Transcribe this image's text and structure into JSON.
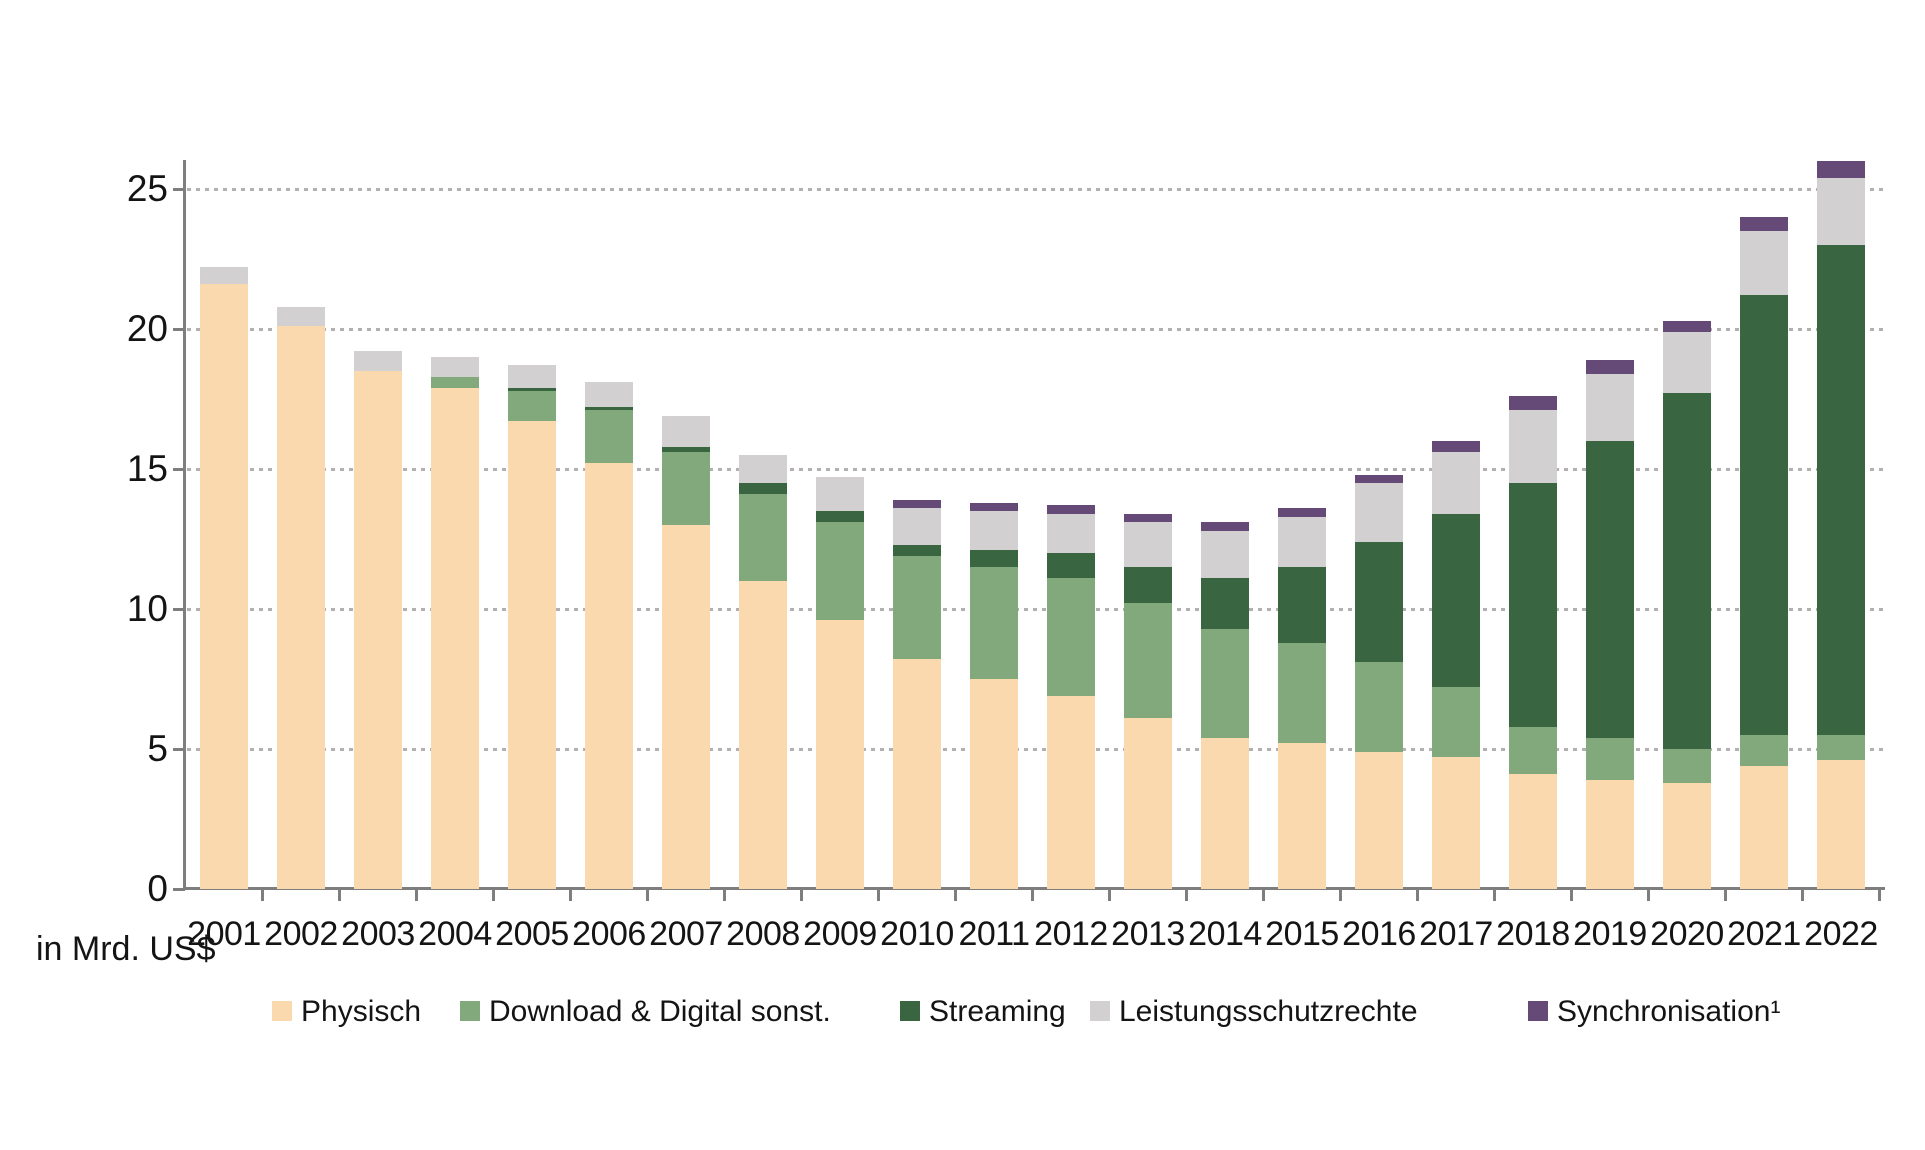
{
  "unit_label": "in Mrd. US$",
  "chart_data": {
    "type": "bar",
    "stacked": true,
    "title": "",
    "xlabel": "",
    "ylabel": "in Mrd. US$",
    "ylim": [
      0,
      26.5
    ],
    "yticks": [
      0,
      5,
      10,
      15,
      20,
      25
    ],
    "grid": "horizontal dotted",
    "legend_position": "bottom",
    "categories": [
      "2001",
      "2002",
      "2003",
      "2004",
      "2005",
      "2006",
      "2007",
      "2008",
      "2009",
      "2010",
      "2011",
      "2012",
      "2013",
      "2014",
      "2015",
      "2016",
      "2017",
      "2018",
      "2019",
      "2020",
      "2021",
      "2022"
    ],
    "series": [
      {
        "name": "Physisch",
        "color": "#FAD9AE",
        "values": [
          21.6,
          20.1,
          18.5,
          17.9,
          16.7,
          15.2,
          13.0,
          11.0,
          9.6,
          8.2,
          7.5,
          6.9,
          6.1,
          5.4,
          5.2,
          4.9,
          4.7,
          4.1,
          3.9,
          3.8,
          4.4,
          4.6
        ]
      },
      {
        "name": "Download & Digital sonst.",
        "color": "#81A97C",
        "values": [
          0,
          0,
          0,
          0.4,
          1.1,
          1.9,
          2.6,
          3.1,
          3.5,
          3.7,
          4.0,
          4.2,
          4.1,
          3.9,
          3.6,
          3.2,
          2.5,
          1.7,
          1.5,
          1.2,
          1.1,
          0.9
        ]
      },
      {
        "name": "Streaming",
        "color": "#396540",
        "values": [
          0,
          0,
          0,
          0,
          0.1,
          0.1,
          0.2,
          0.4,
          0.4,
          0.4,
          0.6,
          0.9,
          1.3,
          1.8,
          2.7,
          4.3,
          6.2,
          8.7,
          10.6,
          12.7,
          15.7,
          17.5
        ]
      },
      {
        "name": "Leistungsschutzrechte",
        "color": "#D2D0D0",
        "values": [
          0.6,
          0.7,
          0.7,
          0.7,
          0.8,
          0.9,
          1.1,
          1.0,
          1.2,
          1.3,
          1.4,
          1.4,
          1.6,
          1.7,
          1.8,
          2.1,
          2.2,
          2.6,
          2.4,
          2.2,
          2.3,
          2.4
        ]
      },
      {
        "name": "Synchronisation¹",
        "color": "#654A78",
        "values": [
          0,
          0,
          0,
          0,
          0,
          0,
          0,
          0,
          0,
          0.3,
          0.3,
          0.3,
          0.3,
          0.3,
          0.3,
          0.3,
          0.4,
          0.5,
          0.5,
          0.4,
          0.5,
          0.6
        ]
      }
    ],
    "totals": [
      22.2,
      20.8,
      19.2,
      19.0,
      18.7,
      18.1,
      16.9,
      15.5,
      14.7,
      13.9,
      13.8,
      13.7,
      13.4,
      13.1,
      13.6,
      14.8,
      16.0,
      17.6,
      18.9,
      20.3,
      24.0,
      26.0
    ]
  },
  "legend": {
    "items": [
      {
        "label": "Physisch",
        "color": "#FAD9AE"
      },
      {
        "label": "Download & Digital sonst.",
        "color": "#81A97C"
      },
      {
        "label": "Streaming",
        "color": "#396540"
      },
      {
        "label": "Leistungsschutzrechte",
        "color": "#D2D0D0"
      },
      {
        "label": "Synchronisation¹",
        "color": "#654A78"
      }
    ]
  }
}
